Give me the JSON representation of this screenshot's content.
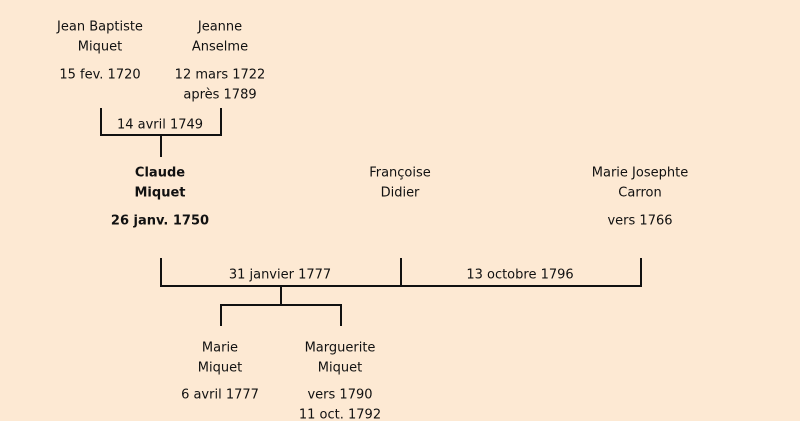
{
  "persons": [
    {
      "name": [
        "Jean Baptiste",
        "Miquet"
      ],
      "dates": [
        "15 fev. 1720"
      ]
    },
    {
      "name": [
        "Jeanne",
        "Anselme"
      ],
      "dates": [
        "12 mars 1722",
        "après 1789"
      ]
    },
    {
      "name": [
        "Claude",
        "Miquet"
      ],
      "dates": [
        "26 janv. 1750"
      ]
    },
    {
      "name": [
        "Françoise",
        "Didier"
      ],
      "dates": []
    },
    {
      "name": [
        "Marie Josephte",
        "Carron"
      ],
      "dates": [
        "vers 1766"
      ]
    },
    {
      "name": [
        "Marie",
        "Miquet"
      ],
      "dates": [
        "6 avril 1777"
      ]
    },
    {
      "name": [
        "Marguerite",
        "Miquet"
      ],
      "dates": [
        "vers 1790",
        "11 oct. 1792"
      ]
    }
  ],
  "marriages": [
    {
      "date": "14 avril 1749"
    },
    {
      "date": "31 janvier 1777"
    },
    {
      "date": "13 octobre 1796"
    }
  ]
}
